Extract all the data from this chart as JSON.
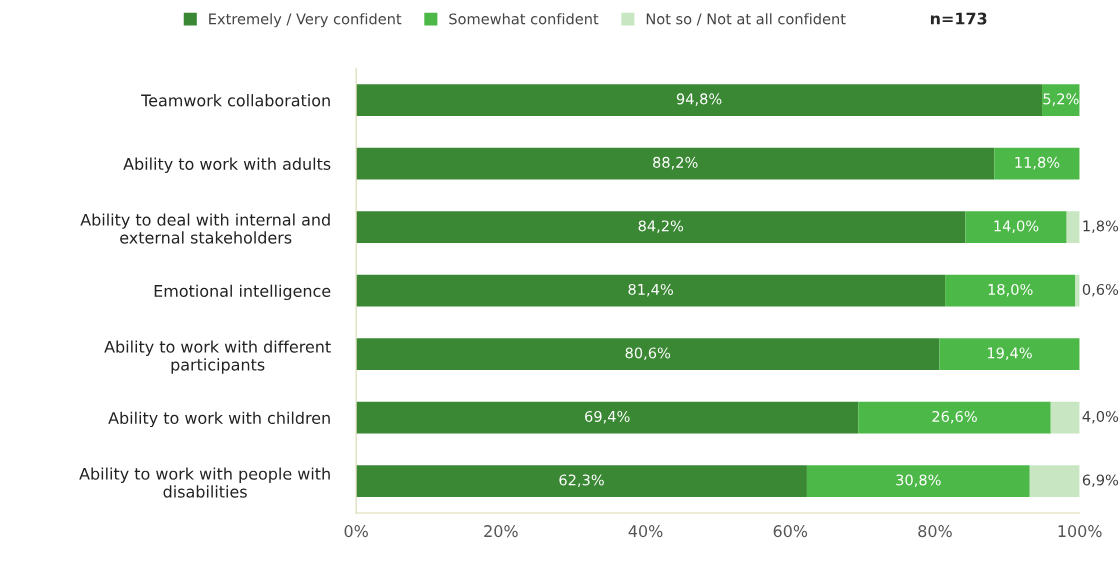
{
  "chart_data": {
    "type": "bar",
    "orientation": "horizontal",
    "stacked": true,
    "legend": "top",
    "categories": [
      "Teamwork collaboration",
      "Ability to work with adults",
      "Ability to deal with internal and external stakeholders",
      "Emotional intelligence",
      "Ability to work with different participants",
      "Ability to work with children",
      "Ability to work with people with disabilities"
    ],
    "series": [
      {
        "name": "Extremely / Very confident",
        "color": "#3a8734",
        "values": [
          94.8,
          88.2,
          84.2,
          81.4,
          80.6,
          69.4,
          62.3
        ],
        "value_labels": [
          "94,8%",
          "88,2%",
          "84,2%",
          "81,4%",
          "80,6%",
          "69,4%",
          "62,3%"
        ]
      },
      {
        "name": "Somewhat confident",
        "color": "#4cb847",
        "values": [
          5.2,
          11.8,
          14.0,
          18.0,
          19.4,
          26.6,
          30.8
        ],
        "value_labels": [
          "5,2%",
          "11,8%",
          "14,0%",
          "18,0%",
          "19,4%",
          "26,6%",
          "30,8%"
        ]
      },
      {
        "name": "Not so / Not at all confident",
        "color": "#c9e6c3",
        "values": [
          null,
          null,
          1.8,
          0.6,
          null,
          4.0,
          6.9
        ],
        "value_labels": [
          null,
          null,
          "1,8%",
          "0,6%",
          null,
          "4,0%",
          "6,9%"
        ]
      }
    ],
    "xlim": [
      0,
      100
    ],
    "xticks": [
      {
        "value": 0,
        "label": "0%"
      },
      {
        "value": 20,
        "label": "20%"
      },
      {
        "value": 40,
        "label": "40%"
      },
      {
        "value": 60,
        "label": "60%"
      },
      {
        "value": 80,
        "label": "80%"
      },
      {
        "value": 100,
        "label": "100%"
      }
    ],
    "grid": false,
    "annotations": [
      "n=173"
    ]
  }
}
